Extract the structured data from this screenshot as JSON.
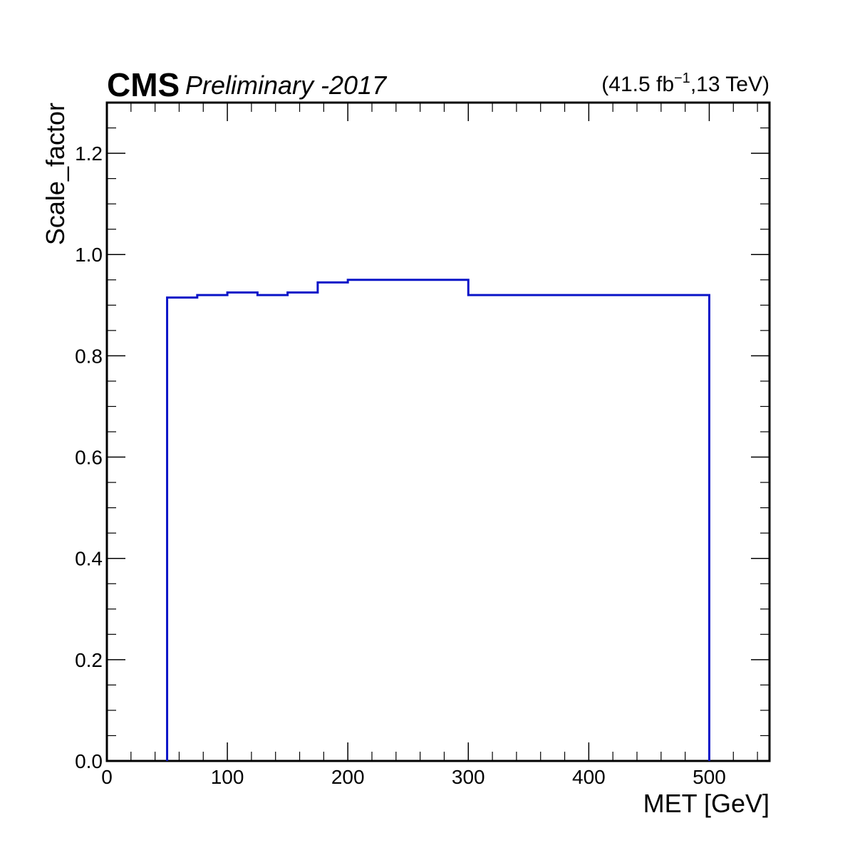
{
  "header": {
    "experiment": "CMS",
    "status": "Preliminary -2017",
    "lumi_value": "(41.5 fb",
    "lumi_exponent": "−1",
    "lumi_suffix": ",13 TeV)"
  },
  "chart_data": {
    "type": "line",
    "style": "step-histogram",
    "xlabel": "MET [GeV]",
    "ylabel": "Scale_factor",
    "xlim": [
      0,
      550
    ],
    "ylim": [
      0,
      1.3
    ],
    "x_ticks": [
      0,
      100,
      200,
      300,
      400,
      500
    ],
    "x_tick_labels": [
      "0",
      "100",
      "200",
      "300",
      "400",
      "500"
    ],
    "y_ticks": [
      0,
      0.2,
      0.4,
      0.6,
      0.8,
      1.0,
      1.2
    ],
    "y_tick_labels": [
      "0.0",
      "0.2",
      "0.4",
      "0.6",
      "0.8",
      "1.0",
      "1.2"
    ],
    "grid": false,
    "series": [
      {
        "color": "#0a14c8",
        "bin_edges": [
          50,
          75,
          100,
          125,
          150,
          175,
          200,
          300,
          500
        ],
        "values": [
          0.915,
          0.92,
          0.925,
          0.92,
          0.925,
          0.945,
          0.95,
          0.92
        ]
      }
    ]
  }
}
